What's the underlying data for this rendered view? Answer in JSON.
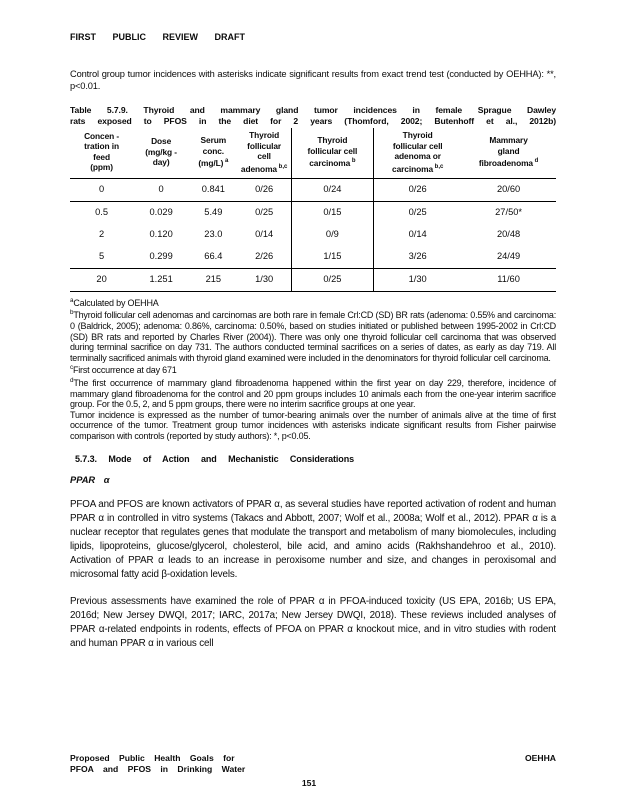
{
  "header": {
    "draft_label": "FIRST PUBLIC REVIEW DRAFT"
  },
  "intro": {
    "text": "Control group tumor incidences with asterisks indicate significant results from exact trend test (conducted by OEHHA): **, p<0.01."
  },
  "table": {
    "title_line1": "Table 5.7.9. Thyroid and mammary gland tumor incidences in female Sprague Dawley",
    "title_line2": "rats exposed to PFOS in the diet for 2 years (Thomford, 2002; Butenhoff et al., 2012b)",
    "columns": [
      {
        "lines": [
          "Concen -",
          "tration in",
          "feed",
          "(ppm)"
        ],
        "sup": ""
      },
      {
        "lines": [
          "Dose",
          "(mg/kg -",
          "day)"
        ],
        "sup": ""
      },
      {
        "lines": [
          "Serum",
          "conc.",
          "(mg/L)"
        ],
        "sup": "a"
      },
      {
        "lines": [
          "Thyroid",
          "follicular",
          "cell",
          "adenoma"
        ],
        "sup": "b,c"
      },
      {
        "lines": [
          "Thyroid",
          "follicular cell",
          "carcinoma"
        ],
        "sup": "b"
      },
      {
        "lines": [
          "Thyroid",
          "follicular cell",
          "adenoma or",
          "carcinoma"
        ],
        "sup": "b,c"
      },
      {
        "lines": [
          "Mammary",
          "gland",
          "fibroadenoma"
        ],
        "sup": "d"
      }
    ],
    "rows": [
      [
        "0",
        "0",
        "0.841",
        "0/26",
        "0/24",
        "0/26",
        "20/60"
      ],
      [
        "0.5",
        "0.029",
        "5.49",
        "0/25",
        "0/15",
        "0/25",
        "27/50*"
      ],
      [
        "2",
        "0.120",
        "23.0",
        "0/14",
        "0/9",
        "0/14",
        "20/48"
      ],
      [
        "5",
        "0.299",
        "66.4",
        "2/26",
        "1/15",
        "3/26",
        "24/49"
      ],
      [
        "20",
        "1.251",
        "215",
        "1/30",
        "0/25",
        "1/30",
        "11/60"
      ]
    ]
  },
  "footnotes": [
    {
      "sup": "a",
      "text": "Calculated by OEHHA"
    },
    {
      "sup": "b",
      "text": "Thyroid follicular cell adenomas and carcinomas are both rare in female Crl:CD (SD) BR rats (adenoma: 0.55% and carcinoma: 0 (Baldrick, 2005); adenoma: 0.86%, carcinoma: 0.50%, based on studies initiated or published between 1995-2002 in Crl:CD (SD) BR rats and reported by Charles River (2004)). There was only one thyroid follicular cell carcinoma that was observed during terminal sacrifice on day 731. The authors conducted terminal sacrifices on a series of dates, as early as day 719. All terminally sacrificed animals with thyroid gland examined were included in the denominators for thyroid follicular cell carcinoma."
    },
    {
      "sup": "c",
      "text": "First occurrence at day 671"
    },
    {
      "sup": "d",
      "text": "The first occurrence of mammary gland fibroadenoma happened within the first year on day 229, therefore, incidence of mammary gland fibroadenoma for the control and 20 ppm groups includes 10 animals each from the one-year interim sacrifice group. For the 0.5, 2, and 5 ppm groups, there were no interim sacrifice groups at one year."
    },
    {
      "sup": "",
      "text": "Tumor incidence is expressed as the number of tumor-bearing animals over the number of animals alive at the time of first occurrence of the tumor. Treatment group tumor incidences with asterisks indicate significant results from Fisher pairwise comparison with controls (reported by study authors): *, p<0.05."
    }
  ],
  "section": {
    "heading": "5.7.3. Mode of Action and Mechanistic Considerations",
    "subheading": "PPAR α"
  },
  "paragraphs": [
    "PFOA and PFOS are known activators of PPAR α, as several studies have reported activation of rodent and human PPAR α in controlled in vitro systems (Takacs and Abbott, 2007; Wolf et al., 2008a; Wolf et al., 2012). PPAR α is a nuclear receptor that regulates genes that modulate the transport and metabolism of many biomolecules, including lipids, lipoproteins, glucose/glycerol, cholesterol, bile acid, and amino acids (Rakhshandehroo et al., 2010). Activation of PPAR α leads to an increase in peroxisome number and size, and changes in peroxisomal and microsomal fatty acid β-oxidation levels.",
    "Previous assessments have examined the role of PPAR α in PFOA-induced toxicity (US EPA, 2016b; US EPA, 2016d; New Jersey DWQI, 2017; IARC, 2017a; New Jersey DWQI, 2018). These reviews included analyses of PPAR α-related endpoints in rodents, effects of PFOA on PPAR α knockout mice, and in vitro studies with rodent and human PPAR α in various cell"
  ],
  "footer": {
    "left_line1": "Proposed Public Health Goals for",
    "left_line2": "PFOA and PFOS in Drinking Water",
    "right": "OEHHA",
    "page_number": "151"
  }
}
